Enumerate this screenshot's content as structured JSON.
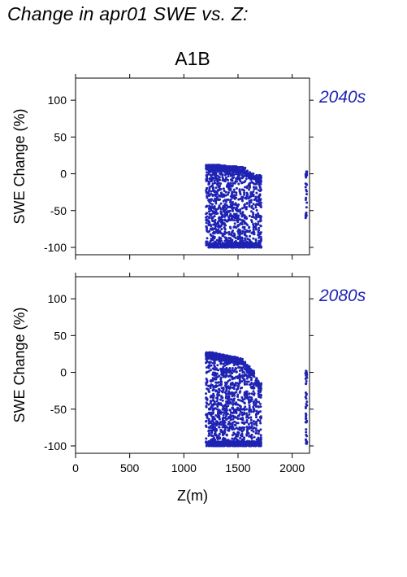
{
  "page": {
    "title": "Change in apr01 SWE vs. Z:"
  },
  "colors": {
    "points": "#1f23b3",
    "panel_label": "#1f23b3",
    "frame": "#000000"
  },
  "chart_data": {
    "type": "scatter",
    "title": "A1B",
    "xlabel": "Z(m)",
    "ylabel": "SWE Change (%)",
    "xlim": [
      0,
      2160
    ],
    "ylim": [
      -110,
      130
    ],
    "xticks": [
      0,
      500,
      1000,
      1500,
      2000
    ],
    "yticks": [
      -100,
      -50,
      0,
      50,
      100
    ],
    "grid": false,
    "panels": [
      {
        "label": "2040s",
        "columns": [
          {
            "x": 1210,
            "ymin": -97,
            "ymax": 12
          },
          {
            "x": 1232,
            "ymin": -100,
            "ymax": 12
          },
          {
            "x": 1252,
            "ymin": -100,
            "ymax": 12
          },
          {
            "x": 1268,
            "ymin": -100,
            "ymax": 12
          },
          {
            "x": 1282,
            "ymin": -100,
            "ymax": 12
          },
          {
            "x": 1296,
            "ymin": -100,
            "ymax": 12
          },
          {
            "x": 1312,
            "ymin": -100,
            "ymax": 12
          },
          {
            "x": 1328,
            "ymin": -100,
            "ymax": 12
          },
          {
            "x": 1345,
            "ymin": -100,
            "ymax": 11
          },
          {
            "x": 1362,
            "ymin": -100,
            "ymax": 11
          },
          {
            "x": 1378,
            "ymin": -100,
            "ymax": 11
          },
          {
            "x": 1395,
            "ymin": -100,
            "ymax": 10
          },
          {
            "x": 1412,
            "ymin": -100,
            "ymax": 10
          },
          {
            "x": 1430,
            "ymin": -100,
            "ymax": 10
          },
          {
            "x": 1448,
            "ymin": -100,
            "ymax": 10
          },
          {
            "x": 1466,
            "ymin": -100,
            "ymax": 10
          },
          {
            "x": 1484,
            "ymin": -100,
            "ymax": 10
          },
          {
            "x": 1502,
            "ymin": -100,
            "ymax": 9
          },
          {
            "x": 1520,
            "ymin": -100,
            "ymax": 9
          },
          {
            "x": 1540,
            "ymin": -100,
            "ymax": 9
          },
          {
            "x": 1560,
            "ymin": -100,
            "ymax": 8
          },
          {
            "x": 1582,
            "ymin": -100,
            "ymax": 4
          },
          {
            "x": 1604,
            "ymin": -100,
            "ymax": 2
          },
          {
            "x": 1624,
            "ymin": -100,
            "ymax": 0
          },
          {
            "x": 1645,
            "ymin": -100,
            "ymax": 0
          },
          {
            "x": 1668,
            "ymin": -100,
            "ymax": -2
          },
          {
            "x": 1690,
            "ymin": -100,
            "ymax": -2
          },
          {
            "x": 1708,
            "ymin": -100,
            "ymax": -2
          },
          {
            "x": 2130,
            "ymin": -60,
            "ymax": 3
          }
        ]
      },
      {
        "label": "2080s",
        "columns": [
          {
            "x": 1210,
            "ymin": -100,
            "ymax": 27
          },
          {
            "x": 1232,
            "ymin": -100,
            "ymax": 27
          },
          {
            "x": 1252,
            "ymin": -100,
            "ymax": 27
          },
          {
            "x": 1268,
            "ymin": -100,
            "ymax": 27
          },
          {
            "x": 1282,
            "ymin": -100,
            "ymax": 26
          },
          {
            "x": 1296,
            "ymin": -100,
            "ymax": 26
          },
          {
            "x": 1312,
            "ymin": -100,
            "ymax": 25
          },
          {
            "x": 1328,
            "ymin": -100,
            "ymax": 25
          },
          {
            "x": 1345,
            "ymin": -100,
            "ymax": 24
          },
          {
            "x": 1362,
            "ymin": -100,
            "ymax": 24
          },
          {
            "x": 1378,
            "ymin": -100,
            "ymax": 23
          },
          {
            "x": 1395,
            "ymin": -100,
            "ymax": 23
          },
          {
            "x": 1412,
            "ymin": -100,
            "ymax": 22
          },
          {
            "x": 1430,
            "ymin": -100,
            "ymax": 22
          },
          {
            "x": 1448,
            "ymin": -100,
            "ymax": 21
          },
          {
            "x": 1466,
            "ymin": -100,
            "ymax": 21
          },
          {
            "x": 1484,
            "ymin": -100,
            "ymax": 20
          },
          {
            "x": 1502,
            "ymin": -100,
            "ymax": 20
          },
          {
            "x": 1520,
            "ymin": -100,
            "ymax": 19
          },
          {
            "x": 1540,
            "ymin": -100,
            "ymax": 18
          },
          {
            "x": 1560,
            "ymin": -100,
            "ymax": 14
          },
          {
            "x": 1582,
            "ymin": -100,
            "ymax": 10
          },
          {
            "x": 1604,
            "ymin": -100,
            "ymax": 8
          },
          {
            "x": 1624,
            "ymin": -100,
            "ymax": 4
          },
          {
            "x": 1645,
            "ymin": -100,
            "ymax": 2
          },
          {
            "x": 1668,
            "ymin": -100,
            "ymax": -8
          },
          {
            "x": 1690,
            "ymin": -100,
            "ymax": -12
          },
          {
            "x": 1708,
            "ymin": -100,
            "ymax": -15
          },
          {
            "x": 2130,
            "ymin": -97,
            "ymax": 2
          }
        ]
      }
    ]
  }
}
